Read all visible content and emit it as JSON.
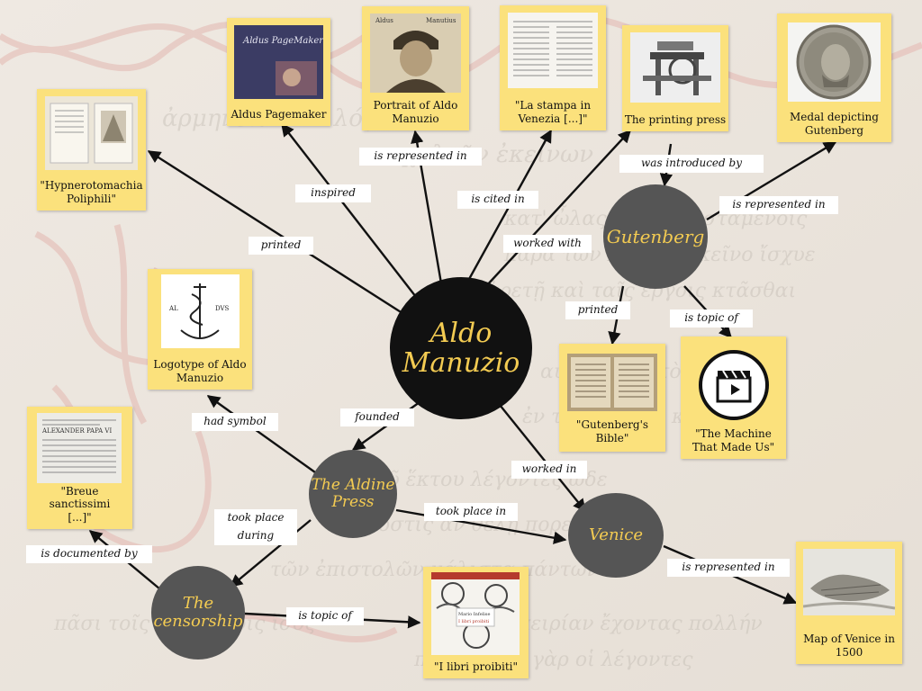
{
  "colors": {
    "accent": "#f3cb52",
    "card": "#fbe17c",
    "main_node": "#111111",
    "secondary_node": "#555555",
    "edge": "#111111"
  },
  "nodes": {
    "aldo": {
      "line1": "Aldo",
      "line2": "Manuzio"
    },
    "gutenberg": "Gutenberg",
    "aldine_press": {
      "line1": "The Aldine",
      "line2": "Press"
    },
    "venice": "Venice",
    "censorship": {
      "line1": "The",
      "line2": "censorship"
    }
  },
  "cards": {
    "hypnerotomachia": {
      "line1": "\"Hypnerotomachia",
      "line2": "Poliphili\"",
      "image": "book-spread-image"
    },
    "pagemaker": {
      "line1": "Aldus Pagemaker",
      "image": "software-box-image",
      "image_text": "Aldus PageMaker"
    },
    "portrait": {
      "line1": "Portrait of Aldo",
      "line2": "Manuzio",
      "image": "portrait-engraving-image",
      "image_text_left": "Aldus",
      "image_text_right": "Manutius"
    },
    "stampa": {
      "line1": "\"La stampa in",
      "line2": "Venezia [...]\"",
      "image": "printed-page-image"
    },
    "printing_press": {
      "line1": "The printing press",
      "image": "printing-press-image"
    },
    "medal": {
      "line1": "Medal depicting",
      "line2": "Gutenberg",
      "image": "medal-image"
    },
    "logotype": {
      "line1": "Logotype of Aldo",
      "line2": "Manuzio",
      "image": "anchor-dolphin-logo-image",
      "image_text_left": "AL",
      "image_text_right": "DVS"
    },
    "breue": {
      "line1": "\"Breue sanctissimi",
      "line2": "[...]\"",
      "image": "papal-document-image",
      "image_text": "ALEXANDER PAPA VI"
    },
    "gutenberg_bible": {
      "line1": "\"Gutenberg's Bible\"",
      "image": "open-bible-image"
    },
    "machine": {
      "line1": "\"The Machine",
      "line2": "That Made Us\"",
      "image": "clapperboard-icon"
    },
    "map_venice": {
      "line1": "Map of Venice in",
      "line2": "1500",
      "image": "city-map-image"
    },
    "libri_proibiti": {
      "line1": "\"I libri proibiti\"",
      "image": "book-cover-image",
      "image_text_1": "Mario Infelise",
      "image_text_2": "I libri proibiti"
    }
  },
  "edges": {
    "printed_aldo": "printed",
    "inspired": "inspired",
    "is_represented_in_portrait": "is represented in",
    "is_cited_in": "is cited in",
    "worked_with": "worked with",
    "was_introduced_by": "was introduced by",
    "is_represented_in_medal": "is represented in",
    "printed_gutenberg": "printed",
    "is_topic_of_machine": "is topic of",
    "had_symbol": "had symbol",
    "founded": "founded",
    "worked_in": "worked in",
    "took_place_in": "took place in",
    "took_place_during": {
      "line1": "took place",
      "line2": "during"
    },
    "is_documented_by": "is documented by",
    "is_topic_of_libri": "is topic of",
    "is_represented_in_map": "is represented in"
  },
  "background": {
    "watermark_text": "ἐν τῷ παρόντι ἔτει τὰς ἐπιστολὰς"
  }
}
